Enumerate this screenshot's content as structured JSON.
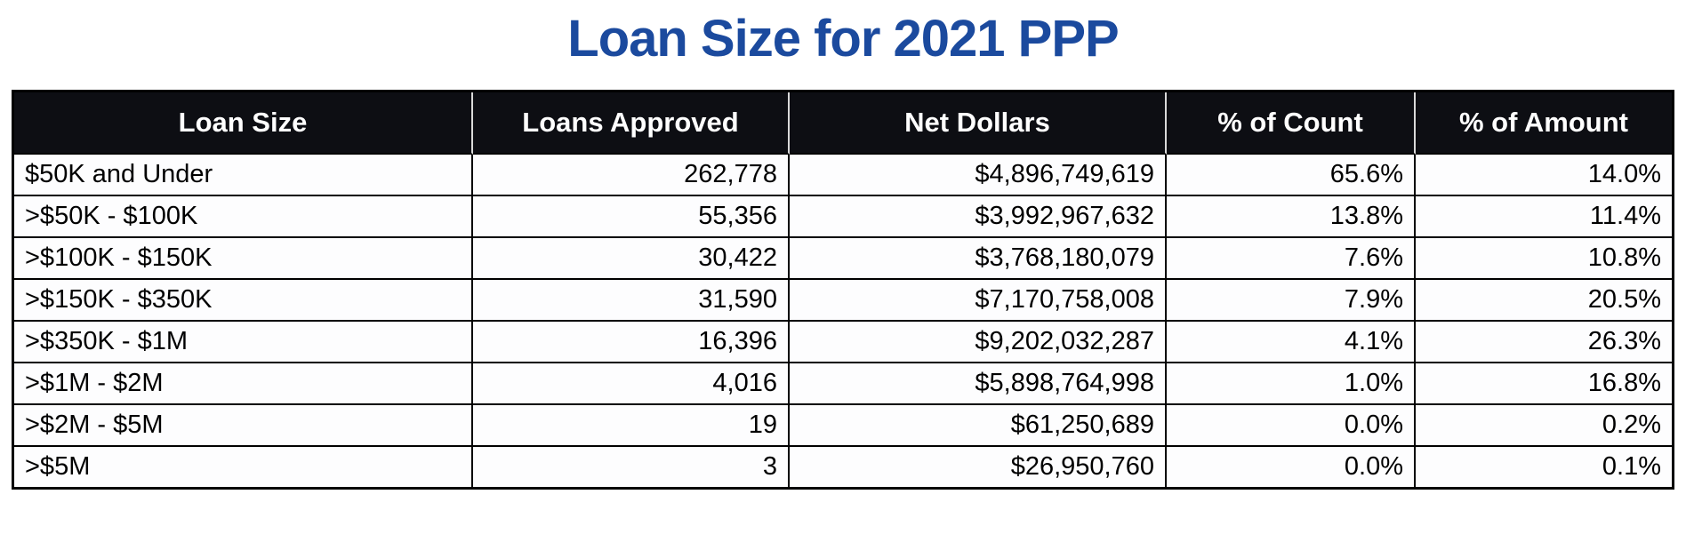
{
  "title": "Loan Size for 2021 PPP",
  "colors": {
    "title_text": "#1b4a9e",
    "header_bg": "#0d0e13",
    "header_text": "#ffffff",
    "border": "#000000",
    "row_bg": "#fdfdfe"
  },
  "chart_data": {
    "type": "table",
    "title": "Loan Size for 2021 PPP",
    "columns": [
      "Loan Size",
      "Loans Approved",
      "Net Dollars",
      "% of Count",
      "% of Amount"
    ],
    "rows": [
      [
        "$50K and Under",
        "262,778",
        "$4,896,749,619",
        "65.6%",
        "14.0%"
      ],
      [
        ">$50K - $100K",
        "55,356",
        "$3,992,967,632",
        "13.8%",
        "11.4%"
      ],
      [
        ">$100K - $150K",
        "30,422",
        "$3,768,180,079",
        "7.6%",
        "10.8%"
      ],
      [
        ">$150K - $350K",
        "31,590",
        "$7,170,758,008",
        "7.9%",
        "20.5%"
      ],
      [
        ">$350K - $1M",
        "16,396",
        "$9,202,032,287",
        "4.1%",
        "26.3%"
      ],
      [
        ">$1M - $2M",
        "4,016",
        "$5,898,764,998",
        "1.0%",
        "16.8%"
      ],
      [
        ">$2M - $5M",
        "19",
        "$61,250,689",
        "0.0%",
        "0.2%"
      ],
      [
        ">$5M",
        "3",
        "$26,950,760",
        "0.0%",
        "0.1%"
      ]
    ],
    "layout": {
      "header_style": "black background, white bold centered text",
      "first_column_align": "left",
      "numeric_columns_align": "right",
      "grid": true
    }
  }
}
